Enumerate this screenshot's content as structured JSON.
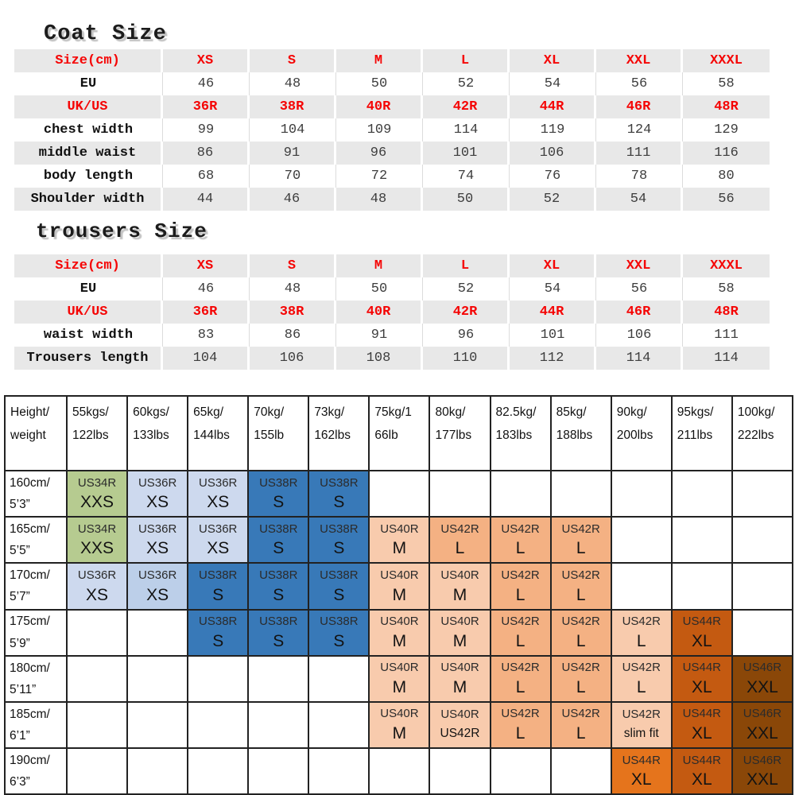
{
  "coat": {
    "title": "Coat Size",
    "rows": [
      {
        "label": "Size(cm)",
        "red": true,
        "values": [
          "XS",
          "S",
          "M",
          "L",
          "XL",
          "XXL",
          "XXXL"
        ]
      },
      {
        "label": "EU",
        "red": false,
        "values": [
          "46",
          "48",
          "50",
          "52",
          "54",
          "56",
          "58"
        ]
      },
      {
        "label": "UK/US",
        "red": true,
        "values": [
          "36R",
          "38R",
          "40R",
          "42R",
          "44R",
          "46R",
          "48R"
        ]
      },
      {
        "label": "chest width",
        "red": false,
        "values": [
          "99",
          "104",
          "109",
          "114",
          "119",
          "124",
          "129"
        ]
      },
      {
        "label": "middle waist",
        "red": false,
        "values": [
          "86",
          "91",
          "96",
          "101",
          "106",
          "111",
          "116"
        ]
      },
      {
        "label": "body length",
        "red": false,
        "values": [
          "68",
          "70",
          "72",
          "74",
          "76",
          "78",
          "80"
        ]
      },
      {
        "label": "Shoulder width",
        "red": false,
        "values": [
          "44",
          "46",
          "48",
          "50",
          "52",
          "54",
          "56"
        ]
      }
    ]
  },
  "trousers": {
    "title": "trousers Size",
    "rows": [
      {
        "label": "Size(cm)",
        "red": true,
        "values": [
          "XS",
          "S",
          "M",
          "L",
          "XL",
          "XXL",
          "XXXL"
        ]
      },
      {
        "label": "EU",
        "red": false,
        "values": [
          "46",
          "48",
          "50",
          "52",
          "54",
          "56",
          "58"
        ]
      },
      {
        "label": "UK/US",
        "red": true,
        "values": [
          "36R",
          "38R",
          "40R",
          "42R",
          "44R",
          "46R",
          "48R"
        ]
      },
      {
        "label": "waist width",
        "red": false,
        "values": [
          "83",
          "86",
          "91",
          "96",
          "101",
          "106",
          "111"
        ]
      },
      {
        "label": "Trousers length",
        "red": false,
        "values": [
          "104",
          "106",
          "108",
          "110",
          "112",
          "114",
          "114"
        ]
      }
    ]
  },
  "fit_chart": {
    "corner": [
      "Height/",
      "weight"
    ],
    "weights": [
      [
        "55kgs/",
        "122lbs"
      ],
      [
        "60kgs/",
        "133lbs"
      ],
      [
        "65kg/",
        "144lbs"
      ],
      [
        "70kg/",
        "155lb"
      ],
      [
        "73kg/",
        "162lbs"
      ],
      [
        "75kg/1",
        "66lb"
      ],
      [
        "80kg/",
        "177lbs"
      ],
      [
        "82.5kg/",
        "183lbs"
      ],
      [
        "85kg/",
        "188lbs"
      ],
      [
        "90kg/",
        "200lbs"
      ],
      [
        "95kgs/",
        "211lbs"
      ],
      [
        "100kg/",
        "222lbs"
      ]
    ],
    "palette": {
      "g": "#b6cb90",
      "b1": "#cdd9ee",
      "b2": "#bccfe9",
      "b3": "#3879b8",
      "p": "#f8cbad",
      "o": "#f4b183",
      "ob": "#e5741c",
      "od": "#c45a11",
      "br": "#8a4708"
    },
    "rows": [
      {
        "height": [
          "160cm/",
          "5’3”"
        ],
        "cells": [
          {
            "t": "US34R",
            "b": "XXS",
            "c": "g"
          },
          {
            "t": "US36R",
            "b": "XS",
            "c": "b1"
          },
          {
            "t": "US36R",
            "b": "XS",
            "c": "b1"
          },
          {
            "t": "US38R",
            "b": "S",
            "c": "b3"
          },
          {
            "t": "US38R",
            "b": "S",
            "c": "b3"
          },
          null,
          null,
          null,
          null,
          null,
          null,
          null
        ]
      },
      {
        "height": [
          "165cm/",
          "5’5”"
        ],
        "cells": [
          {
            "t": "US34R",
            "b": "XXS",
            "c": "g"
          },
          {
            "t": "US36R",
            "b": "XS",
            "c": "b1"
          },
          {
            "t": "US36R",
            "b": "XS",
            "c": "b1"
          },
          {
            "t": "US38R",
            "b": "S",
            "c": "b3"
          },
          {
            "t": "US38R",
            "b": "S",
            "c": "b3"
          },
          {
            "t": "US40R",
            "b": "M",
            "c": "p"
          },
          {
            "t": "US42R",
            "b": "L",
            "c": "o"
          },
          {
            "t": "US42R",
            "b": "L",
            "c": "o"
          },
          {
            "t": "US42R",
            "b": "L",
            "c": "o"
          },
          null,
          null,
          null
        ]
      },
      {
        "height": [
          "170cm/",
          "5’7”"
        ],
        "cells": [
          {
            "t": "US36R",
            "b": "XS",
            "c": "b1"
          },
          {
            "t": "US36R",
            "b": "XS",
            "c": "b2"
          },
          {
            "t": "US38R",
            "b": "S",
            "c": "b3"
          },
          {
            "t": "US38R",
            "b": "S",
            "c": "b3"
          },
          {
            "t": "US38R",
            "b": "S",
            "c": "b3"
          },
          {
            "t": "US40R",
            "b": "M",
            "c": "p"
          },
          {
            "t": "US40R",
            "b": "M",
            "c": "p"
          },
          {
            "t": "US42R",
            "b": "L",
            "c": "o"
          },
          {
            "t": "US42R",
            "b": "L",
            "c": "o"
          },
          null,
          null,
          null
        ]
      },
      {
        "height": [
          "175cm/",
          "5’9”"
        ],
        "cells": [
          null,
          null,
          {
            "t": "US38R",
            "b": "S",
            "c": "b3"
          },
          {
            "t": "US38R",
            "b": "S",
            "c": "b3"
          },
          {
            "t": "US38R",
            "b": "S",
            "c": "b3"
          },
          {
            "t": "US40R",
            "b": "M",
            "c": "p"
          },
          {
            "t": "US40R",
            "b": "M",
            "c": "p"
          },
          {
            "t": "US42R",
            "b": "L",
            "c": "o"
          },
          {
            "t": "US42R",
            "b": "L",
            "c": "o"
          },
          {
            "t": "US42R",
            "b": "L",
            "c": "p"
          },
          {
            "t": "US44R",
            "b": "XL",
            "c": "od"
          },
          null
        ]
      },
      {
        "height": [
          "180cm/",
          "5’11”"
        ],
        "cells": [
          null,
          null,
          null,
          null,
          null,
          {
            "t": "US40R",
            "b": "M",
            "c": "p"
          },
          {
            "t": "US40R",
            "b": "M",
            "c": "p"
          },
          {
            "t": "US42R",
            "b": "L",
            "c": "o"
          },
          {
            "t": "US42R",
            "b": "L",
            "c": "o"
          },
          {
            "t": "US42R",
            "b": "L",
            "c": "p"
          },
          {
            "t": "US44R",
            "b": "XL",
            "c": "od"
          },
          {
            "t": "US46R",
            "b": "XXL",
            "c": "br"
          }
        ]
      },
      {
        "height": [
          "185cm/",
          "6’1”"
        ],
        "cells": [
          null,
          null,
          null,
          null,
          null,
          {
            "t": "US40R",
            "b": "M",
            "c": "p"
          },
          {
            "t": "US40R",
            "b": "US42R",
            "c": "p",
            "sm": true
          },
          {
            "t": "US42R",
            "b": "L",
            "c": "o"
          },
          {
            "t": "US42R",
            "b": "L",
            "c": "o"
          },
          {
            "t": "US42R",
            "b": "slim fit",
            "c": "p",
            "sm": true
          },
          {
            "t": "US44R",
            "b": "XL",
            "c": "od"
          },
          {
            "t": "US46R",
            "b": "XXL",
            "c": "br"
          }
        ]
      },
      {
        "height": [
          "190cm/",
          "6’3”"
        ],
        "cells": [
          null,
          null,
          null,
          null,
          null,
          null,
          null,
          null,
          null,
          {
            "t": "US44R",
            "b": "XL",
            "c": "ob"
          },
          {
            "t": "US44R",
            "b": "XL",
            "c": "od"
          },
          {
            "t": "US46R",
            "b": "XXL",
            "c": "br"
          }
        ]
      }
    ]
  }
}
